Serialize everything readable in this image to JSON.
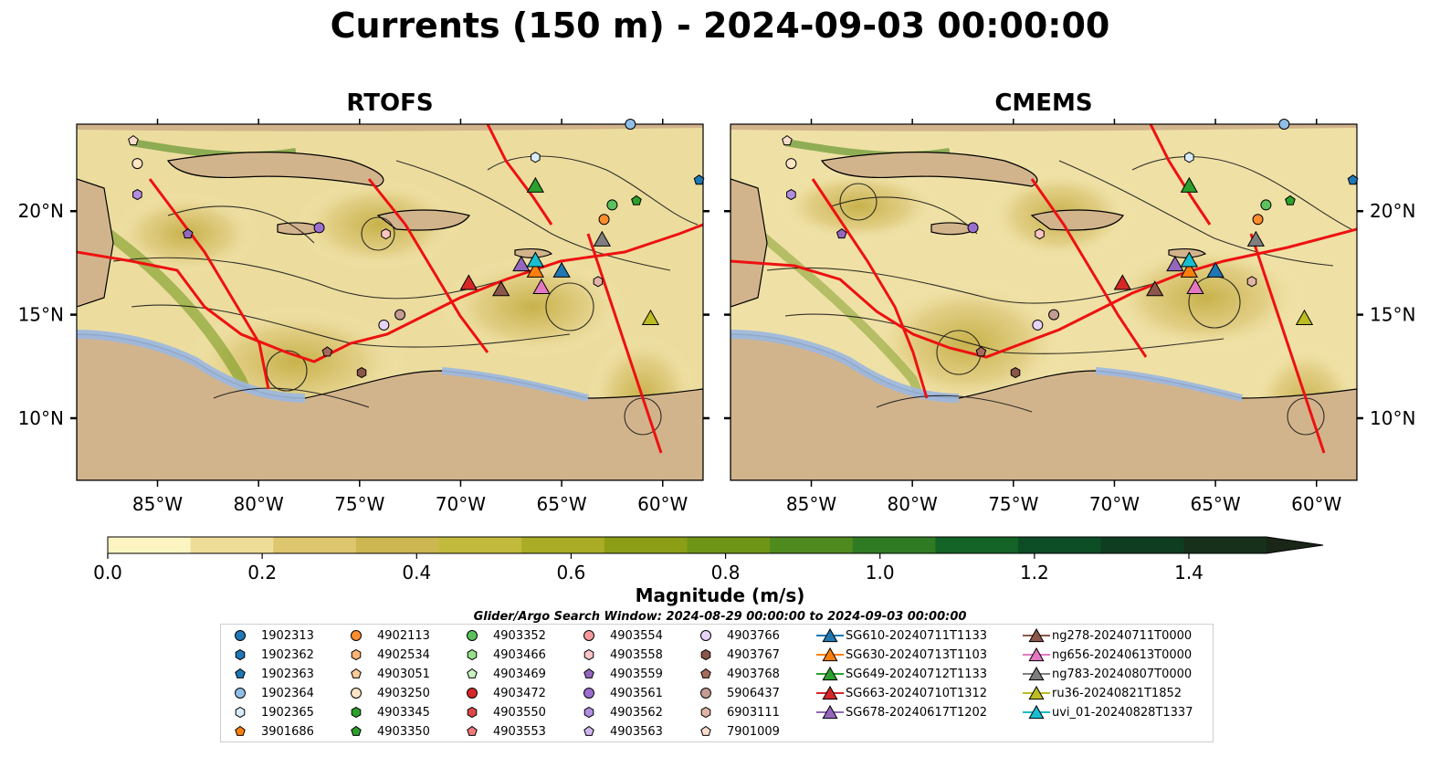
{
  "title": "Currents (150 m) - 2024-09-03 00:00:00",
  "panels": [
    {
      "title": "RTOFS"
    },
    {
      "title": "CMEMS"
    }
  ],
  "axes": {
    "lon_ticks": [
      "85°W",
      "80°W",
      "75°W",
      "70°W",
      "65°W",
      "60°W"
    ],
    "lat_ticks": [
      "20°N",
      "15°N",
      "10°N"
    ]
  },
  "colorbar": {
    "label": "Magnitude (m/s)",
    "tick_labels": [
      "0.0",
      "0.2",
      "0.4",
      "0.6",
      "0.8",
      "1.0",
      "1.2",
      "1.4"
    ],
    "colors": [
      "#fcf5c2",
      "#eedd97",
      "#ddc66e",
      "#ccb751",
      "#c2ba3c",
      "#a9ac24",
      "#8b9e16",
      "#6f9516",
      "#4f8a1f",
      "#2f7b24",
      "#136326",
      "#0c4d25",
      "#0e3d22",
      "#16301c",
      "#1a2617"
    ]
  },
  "legend": {
    "title": "Glider/Argo Search Window: 2024-08-29 00:00:00 to 2024-09-03 00:00:00",
    "columns": [
      [
        {
          "label": "1902313",
          "marker": "circle",
          "color": "#1f77b4"
        },
        {
          "label": "1902362",
          "marker": "hexagon",
          "color": "#1f77b4"
        },
        {
          "label": "1902363",
          "marker": "pentagon",
          "color": "#1f77b4"
        },
        {
          "label": "1902364",
          "marker": "circle",
          "color": "#8fbfe6"
        },
        {
          "label": "1902365",
          "marker": "hexagon",
          "color": "#d9ecfa"
        },
        {
          "label": "3901686",
          "marker": "pentagon",
          "color": "#ff7f0e"
        }
      ],
      [
        {
          "label": "4902113",
          "marker": "circle",
          "color": "#ff8c2e"
        },
        {
          "label": "4902534",
          "marker": "hexagon",
          "color": "#ffb574"
        },
        {
          "label": "4903051",
          "marker": "pentagon",
          "color": "#ffcc99"
        },
        {
          "label": "4903250",
          "marker": "circle",
          "color": "#ffe5c6"
        },
        {
          "label": "4903345",
          "marker": "hexagon",
          "color": "#2ca02c"
        },
        {
          "label": "4903350",
          "marker": "pentagon",
          "color": "#2ca02c"
        }
      ],
      [
        {
          "label": "4903352",
          "marker": "circle",
          "color": "#5cc15c"
        },
        {
          "label": "4903466",
          "marker": "hexagon",
          "color": "#98df8a"
        },
        {
          "label": "4903469",
          "marker": "pentagon",
          "color": "#c9f2c0"
        },
        {
          "label": "4903472",
          "marker": "circle",
          "color": "#d62728"
        },
        {
          "label": "4903550",
          "marker": "hexagon",
          "color": "#e04848"
        },
        {
          "label": "4903553",
          "marker": "pentagon",
          "color": "#f07878"
        }
      ],
      [
        {
          "label": "4903554",
          "marker": "circle",
          "color": "#f59a9a"
        },
        {
          "label": "4903558",
          "marker": "hexagon",
          "color": "#fbc5c5"
        },
        {
          "label": "4903559",
          "marker": "pentagon",
          "color": "#9467bd"
        },
        {
          "label": "4903561",
          "marker": "circle",
          "color": "#9b6fd0"
        },
        {
          "label": "4903562",
          "marker": "hexagon",
          "color": "#b28de0"
        },
        {
          "label": "4903563",
          "marker": "pentagon",
          "color": "#cdb4ef"
        }
      ],
      [
        {
          "label": "4903766",
          "marker": "circle",
          "color": "#e6d3f7"
        },
        {
          "label": "4903767",
          "marker": "hexagon",
          "color": "#8c564b"
        },
        {
          "label": "4903768",
          "marker": "pentagon",
          "color": "#a86a5c"
        },
        {
          "label": "5906437",
          "marker": "circle",
          "color": "#c49c94"
        },
        {
          "label": "6903111",
          "marker": "hexagon",
          "color": "#e0b4a5"
        },
        {
          "label": "7901009",
          "marker": "pentagon",
          "color": "#fbdccb"
        }
      ],
      [
        {
          "label": "SG610-20240711T1133",
          "marker": "triangle",
          "color": "#1f77b4"
        },
        {
          "label": "SG630-20240713T1103",
          "marker": "triangle",
          "color": "#ff7f0e"
        },
        {
          "label": "SG649-20240712T1133",
          "marker": "triangle",
          "color": "#2ca02c"
        },
        {
          "label": "SG663-20240710T1312",
          "marker": "triangle",
          "color": "#d62728"
        },
        {
          "label": "SG678-20240617T1202",
          "marker": "triangle",
          "color": "#9467bd"
        }
      ],
      [
        {
          "label": "ng278-20240711T0000",
          "marker": "triangle",
          "color": "#8c564b"
        },
        {
          "label": "ng656-20240613T0000",
          "marker": "triangle",
          "color": "#e377c2"
        },
        {
          "label": "ng783-20240807T0000",
          "marker": "triangle",
          "color": "#7f7f7f"
        },
        {
          "label": "ru36-20240821T1852",
          "marker": "triangle",
          "color": "#bcbd22"
        },
        {
          "label": "uvi_01-20240828T1337",
          "marker": "triangle",
          "color": "#17becf"
        }
      ]
    ]
  },
  "chart_data": {
    "type": "map",
    "xlim": [
      -89,
      -58
    ],
    "ylim": [
      7,
      24.2
    ],
    "xlabel": "",
    "ylabel": "",
    "colorbar_range": [
      0,
      1.5
    ],
    "platforms": [
      {
        "name": "SG610-20240711T1133",
        "lon": -65.0,
        "lat": 17.1
      },
      {
        "name": "SG630-20240713T1103",
        "lon": -66.3,
        "lat": 17.1
      },
      {
        "name": "SG649-20240712T1133",
        "lon": -66.3,
        "lat": 21.2
      },
      {
        "name": "SG663-20240710T1312",
        "lon": -69.6,
        "lat": 16.5
      },
      {
        "name": "SG678-20240617T1202",
        "lon": -67.0,
        "lat": 17.4
      },
      {
        "name": "ng278-20240711T0000",
        "lon": -68.0,
        "lat": 16.2
      },
      {
        "name": "ng656-20240613T0000",
        "lon": -66.0,
        "lat": 16.3
      },
      {
        "name": "ng783-20240807T0000",
        "lon": -63.0,
        "lat": 18.6
      },
      {
        "name": "ru36-20240821T1852",
        "lon": -60.6,
        "lat": 14.8
      },
      {
        "name": "uvi_01-20240828T1337",
        "lon": -66.3,
        "lat": 17.6
      },
      {
        "name": "4902113",
        "lon": -62.9,
        "lat": 19.6
      },
      {
        "name": "4903352",
        "lon": -62.5,
        "lat": 20.3
      },
      {
        "name": "4903350",
        "lon": -61.3,
        "lat": 20.5
      },
      {
        "name": "1902365",
        "lon": -66.3,
        "lat": 22.6
      },
      {
        "name": "4903561",
        "lon": -77.0,
        "lat": 19.2
      },
      {
        "name": "4903562",
        "lon": -86.0,
        "lat": 20.8
      },
      {
        "name": "4903559",
        "lon": -83.5,
        "lat": 18.9
      },
      {
        "name": "4903558",
        "lon": -73.7,
        "lat": 18.9
      },
      {
        "name": "4903250",
        "lon": -86.0,
        "lat": 22.3
      },
      {
        "name": "7901009",
        "lon": -86.2,
        "lat": 23.4
      },
      {
        "name": "5906437",
        "lon": -73.0,
        "lat": 15.0
      },
      {
        "name": "4903766",
        "lon": -73.8,
        "lat": 14.5
      },
      {
        "name": "4903768",
        "lon": -76.6,
        "lat": 13.2
      },
      {
        "name": "4903767",
        "lon": -74.9,
        "lat": 12.2
      },
      {
        "name": "6903111",
        "lon": -63.2,
        "lat": 16.6
      },
      {
        "name": "1902364",
        "lon": -61.6,
        "lat": 24.2
      },
      {
        "name": "1902363",
        "lon": -58.2,
        "lat": 21.5
      }
    ]
  }
}
